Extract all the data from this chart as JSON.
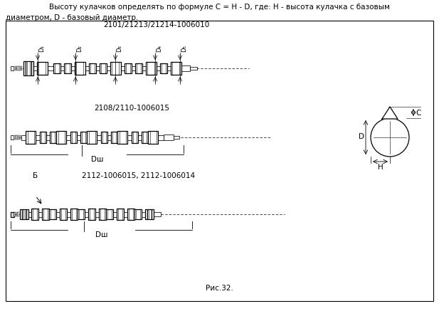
{
  "bg_color": "#ffffff",
  "border_color": "#000000",
  "text_color": "#000000",
  "header_text1": "Высоту кулачков определять по формуле C = H - D, где: H - высота кулачка с базовым",
  "header_text2": "диаметром, D - базовый диаметр.",
  "title1": "2101/21213/21214-1006010",
  "title2": "2108/2110-1006015",
  "title3": "2112-1006015, 2112-1006014",
  "label_b": "Б",
  "label_dsh": "Dш",
  "label_d1": "D₁",
  "label_d2": "D₂",
  "label_d3": "D₃",
  "label_d4": "D₄",
  "label_d5": "D₅",
  "label_D": "D",
  "label_C": "C",
  "label_H": "H",
  "caption": "Рис.32.",
  "fig_width": 6.17,
  "fig_height": 4.52
}
